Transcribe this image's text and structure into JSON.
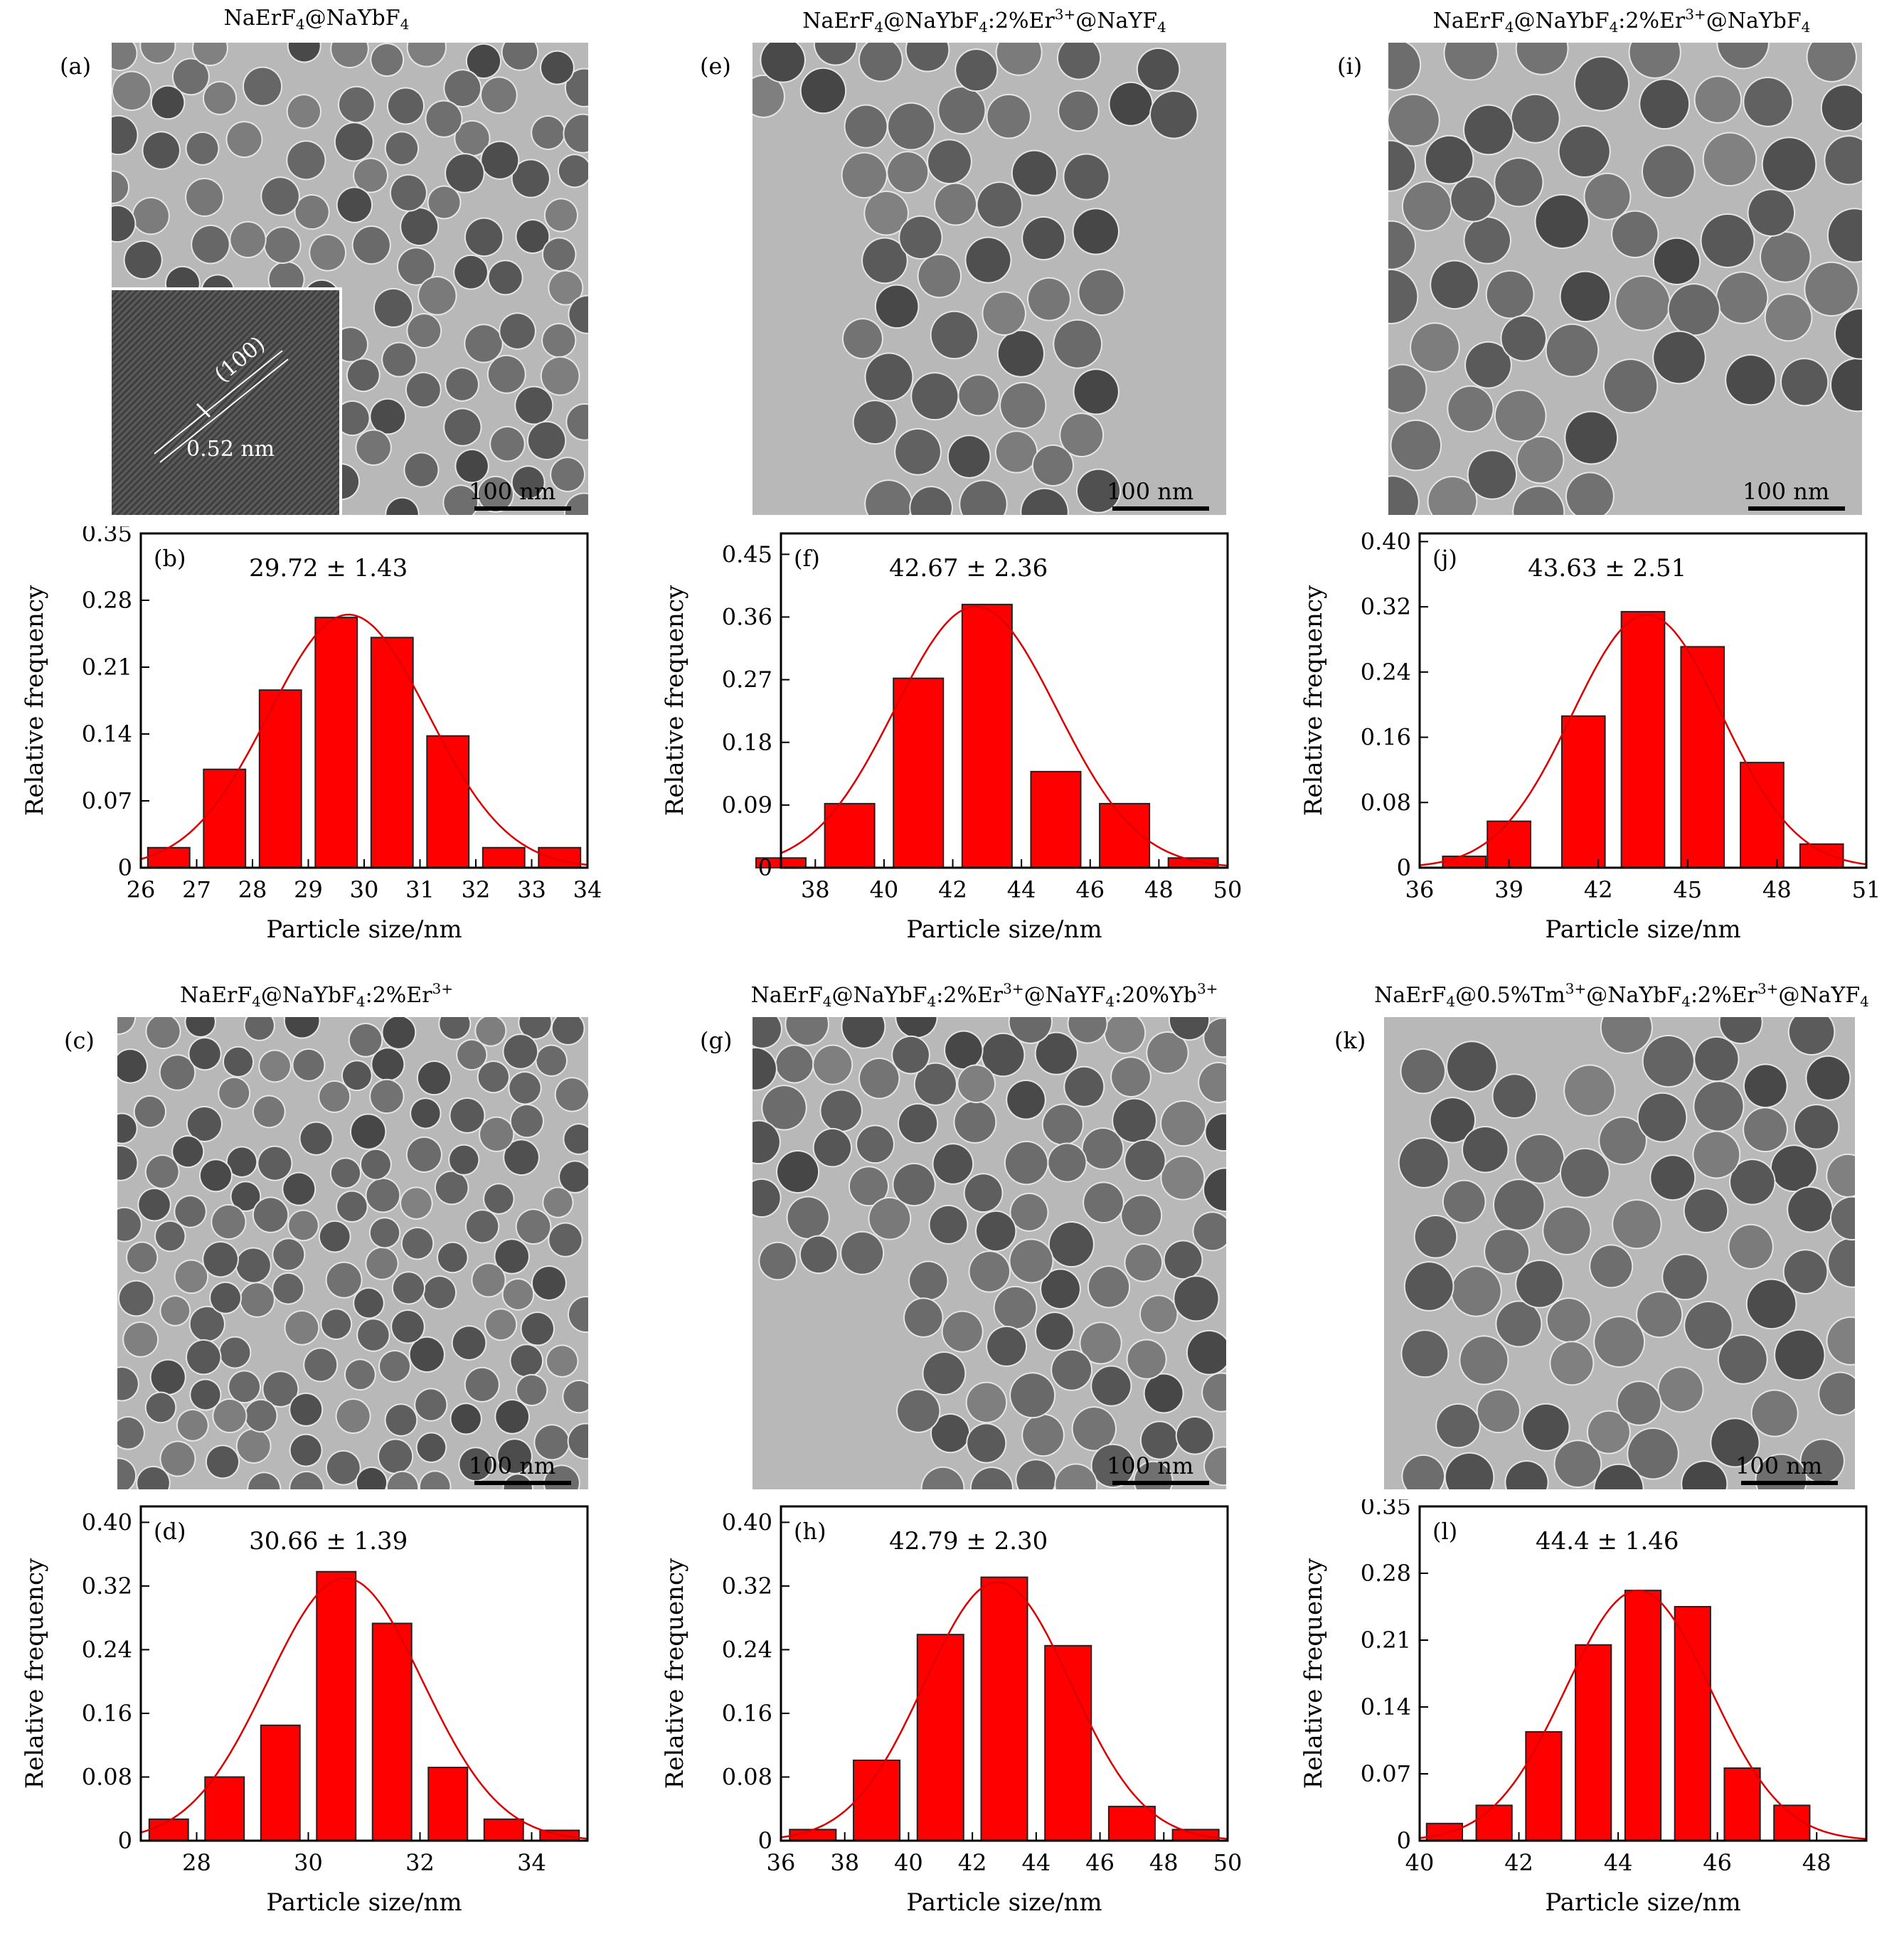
{
  "panels": [
    {
      "id": "a",
      "title_parts": [
        [
          "NaErF",
          ""
        ],
        [
          "4",
          "sub"
        ],
        [
          "@NaYbF",
          ""
        ],
        [
          "4",
          "sub"
        ]
      ],
      "letter": "(a)",
      "scale_label": "100 nm",
      "inset": {
        "plane": "(100)",
        "spacing": "0.52 nm"
      }
    },
    {
      "id": "c",
      "title_parts": [
        [
          "NaErF",
          ""
        ],
        [
          "4",
          "sub"
        ],
        [
          "@NaYbF",
          ""
        ],
        [
          "4",
          "sub"
        ],
        [
          ":2%Er",
          ""
        ],
        [
          "3+",
          "sup"
        ]
      ],
      "letter": "(c)",
      "scale_label": "100 nm"
    },
    {
      "id": "e",
      "title_parts": [
        [
          "NaErF",
          ""
        ],
        [
          "4",
          "sub"
        ],
        [
          "@NaYbF",
          ""
        ],
        [
          "4",
          "sub"
        ],
        [
          ":2%Er",
          ""
        ],
        [
          "3+",
          "sup"
        ],
        [
          "@NaYF",
          ""
        ],
        [
          "4",
          "sub"
        ]
      ],
      "letter": "(e)",
      "scale_label": "100 nm"
    },
    {
      "id": "g",
      "title_parts": [
        [
          "NaErF",
          ""
        ],
        [
          "4",
          "sub"
        ],
        [
          "@NaYbF",
          ""
        ],
        [
          "4",
          "sub"
        ],
        [
          ":2%Er",
          ""
        ],
        [
          "3+",
          "sup"
        ],
        [
          "@NaYF",
          ""
        ],
        [
          "4",
          "sub"
        ],
        [
          ":20%Yb",
          ""
        ],
        [
          "3+",
          "sup"
        ]
      ],
      "letter": "(g)",
      "scale_label": "100 nm"
    },
    {
      "id": "i",
      "title_parts": [
        [
          "NaErF",
          ""
        ],
        [
          "4",
          "sub"
        ],
        [
          "@NaYbF",
          ""
        ],
        [
          "4",
          "sub"
        ],
        [
          ":2%Er",
          ""
        ],
        [
          "3+",
          "sup"
        ],
        [
          "@NaYbF",
          ""
        ],
        [
          "4",
          "sub"
        ]
      ],
      "letter": "(i)",
      "scale_label": "100 nm"
    },
    {
      "id": "k",
      "title_parts": [
        [
          "NaErF",
          ""
        ],
        [
          "4",
          "sub"
        ],
        [
          "@0.5%Tm",
          ""
        ],
        [
          "3+",
          "sup"
        ],
        [
          "@NaYbF",
          ""
        ],
        [
          "4",
          "sub"
        ],
        [
          ":2%Er",
          ""
        ],
        [
          "3+",
          "sup"
        ],
        [
          "@NaYF",
          ""
        ],
        [
          "4",
          "sub"
        ]
      ],
      "letter": "(k)",
      "scale_label": "100 nm"
    }
  ],
  "chart_data": [
    {
      "id": "b",
      "type": "bar",
      "letter": "(b)",
      "annotation": "29.72 ± 1.43",
      "xlabel": "Particle size/nm",
      "ylabel": "Relative frequency",
      "xlim": [
        26,
        34
      ],
      "ylim": [
        0,
        0.35
      ],
      "xticks": [
        26,
        27,
        28,
        29,
        30,
        31,
        32,
        33,
        34
      ],
      "yticks": [
        0,
        0.07,
        0.14,
        0.21,
        0.28,
        0.35
      ],
      "ytick_labels": [
        "0",
        "0.07",
        "0.14",
        "0.21",
        "0.28",
        "0.35"
      ],
      "x": [
        26.5,
        27.5,
        28.5,
        29.5,
        30.5,
        31.5,
        32.5,
        33.5
      ],
      "bar_width": 0.75,
      "values": [
        0.021,
        0.103,
        0.186,
        0.262,
        0.241,
        0.138,
        0.021,
        0.021
      ],
      "fit": {
        "mean": 29.72,
        "sigma": 1.43,
        "peak": 0.265
      }
    },
    {
      "id": "d",
      "type": "bar",
      "letter": "(d)",
      "annotation": "30.66 ± 1.39",
      "xlabel": "Particle size/nm",
      "ylabel": "Relative frequency",
      "xlim": [
        27,
        35
      ],
      "ylim": [
        0,
        0.42
      ],
      "xticks": [
        28,
        30,
        32,
        34
      ],
      "yticks": [
        0,
        0.08,
        0.16,
        0.24,
        0.32,
        0.4
      ],
      "ytick_labels": [
        "0",
        "0.08",
        "0.16",
        "0.24",
        "0.32",
        "0.40"
      ],
      "x": [
        27.5,
        28.5,
        29.5,
        30.5,
        31.5,
        32.5,
        33.5,
        34.5
      ],
      "bar_width": 0.7,
      "values": [
        0.027,
        0.08,
        0.145,
        0.338,
        0.273,
        0.092,
        0.027,
        0.013
      ],
      "fit": {
        "mean": 30.66,
        "sigma": 1.39,
        "peak": 0.33
      }
    },
    {
      "id": "f",
      "type": "bar",
      "letter": "(f)",
      "annotation": "42.67 ± 2.36",
      "xlabel": "Particle size/nm",
      "ylabel": "Relative frequency",
      "xlim": [
        37,
        50
      ],
      "ylim": [
        0,
        0.48
      ],
      "xticks": [
        38,
        40,
        42,
        44,
        46,
        48,
        50
      ],
      "yticks": [
        0,
        0.09,
        0.18,
        0.27,
        0.36,
        0.45
      ],
      "ytick_labels": [
        "0",
        "0.09",
        "0.18",
        "0.27",
        "0.36",
        "0.45"
      ],
      "x": [
        37,
        39,
        41,
        43,
        45,
        47,
        49
      ],
      "bar_width": 1.45,
      "values": [
        0.014,
        0.092,
        0.272,
        0.378,
        0.138,
        0.092,
        0.014
      ],
      "fit": {
        "mean": 42.67,
        "sigma": 2.36,
        "peak": 0.375
      }
    },
    {
      "id": "h",
      "type": "bar",
      "letter": "(h)",
      "annotation": "42.79 ± 2.30",
      "xlabel": "Particle size/nm",
      "ylabel": "Relative frequency",
      "xlim": [
        36,
        50
      ],
      "ylim": [
        0,
        0.42
      ],
      "xticks": [
        36,
        38,
        40,
        42,
        44,
        46,
        48,
        50
      ],
      "yticks": [
        0,
        0.08,
        0.16,
        0.24,
        0.32,
        0.4
      ],
      "ytick_labels": [
        "0",
        "0.08",
        "0.16",
        "0.24",
        "0.32",
        "0.40"
      ],
      "x": [
        37,
        39,
        41,
        43,
        45,
        47,
        49
      ],
      "bar_width": 1.45,
      "values": [
        0.014,
        0.101,
        0.259,
        0.331,
        0.245,
        0.043,
        0.014
      ],
      "fit": {
        "mean": 42.79,
        "sigma": 2.3,
        "peak": 0.325
      }
    },
    {
      "id": "j",
      "type": "bar",
      "letter": "(j)",
      "annotation": "43.63 ± 2.51",
      "xlabel": "Particle size/nm",
      "ylabel": "Relative frequency",
      "xlim": [
        36,
        51
      ],
      "ylim": [
        0,
        0.41
      ],
      "xticks": [
        36,
        39,
        42,
        45,
        48,
        51
      ],
      "yticks": [
        0,
        0.08,
        0.16,
        0.24,
        0.32,
        0.4
      ],
      "ytick_labels": [
        "0",
        "0.08",
        "0.16",
        "0.24",
        "0.32",
        "0.40"
      ],
      "x": [
        37.5,
        39,
        41.5,
        43.5,
        45.5,
        47.5,
        49.5
      ],
      "bar_width": 1.45,
      "values": [
        0.014,
        0.057,
        0.186,
        0.314,
        0.271,
        0.129,
        0.029
      ],
      "fit": {
        "mean": 43.63,
        "sigma": 2.51,
        "peak": 0.31
      }
    },
    {
      "id": "l",
      "type": "bar",
      "letter": "(l)",
      "annotation": "44.4 ± 1.46",
      "xlabel": "Particle size/nm",
      "ylabel": "Relative frequency",
      "xlim": [
        40,
        49
      ],
      "ylim": [
        0,
        0.35
      ],
      "xticks": [
        40,
        42,
        44,
        46,
        48
      ],
      "yticks": [
        0,
        0.07,
        0.14,
        0.21,
        0.28,
        0.35
      ],
      "ytick_labels": [
        "0",
        "0.07",
        "0.14",
        "0.21",
        "0.28",
        "0.35"
      ],
      "x": [
        40.5,
        41.5,
        42.5,
        43.5,
        44.5,
        45.5,
        46.5,
        47.5
      ],
      "bar_width": 0.72,
      "values": [
        0.018,
        0.037,
        0.114,
        0.205,
        0.262,
        0.245,
        0.076,
        0.037
      ],
      "fit": {
        "mean": 44.4,
        "sigma": 1.46,
        "peak": 0.262
      }
    }
  ],
  "colors": {
    "bar": "#ff0000",
    "fit": "#dd0000",
    "axis": "#000000",
    "tem_bg": "#b8b8b8",
    "particle": "#6e6e6e"
  }
}
